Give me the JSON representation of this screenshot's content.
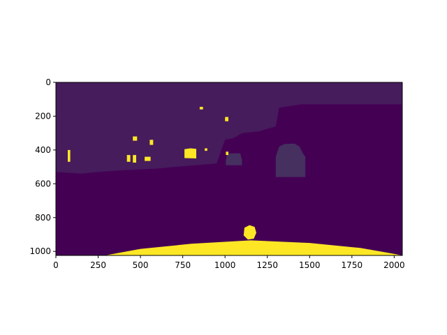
{
  "figure": {
    "background": "#ffffff"
  },
  "chart_data": {
    "type": "heatmap",
    "title": "",
    "xlabel": "",
    "ylabel": "",
    "image_width": 2048,
    "image_height": 1024,
    "xlim": [
      0,
      2048
    ],
    "ylim": [
      1024,
      0
    ],
    "y_inverted": true,
    "colormap": "viridis",
    "x_ticks": [
      0,
      250,
      500,
      750,
      1000,
      1250,
      1500,
      1750,
      2000
    ],
    "y_ticks": [
      0,
      200,
      400,
      600,
      800,
      1000
    ],
    "grid": false,
    "legend": "none",
    "colors": {
      "background_class": "#440154",
      "dark_region": "#461c5c",
      "vehicle": "#45305f",
      "highlight": "#fde725",
      "edge": "#21918c"
    },
    "regions": [
      {
        "label": "buildings",
        "color_key": "dark_region",
        "points": [
          [
            0,
            0
          ],
          [
            2048,
            0
          ],
          [
            2048,
            130
          ],
          [
            1450,
            130
          ],
          [
            1320,
            150
          ],
          [
            1300,
            260
          ],
          [
            1200,
            290
          ],
          [
            1100,
            300
          ],
          [
            1050,
            330
          ],
          [
            1000,
            340
          ],
          [
            950,
            480
          ],
          [
            700,
            500
          ],
          [
            600,
            510
          ],
          [
            400,
            520
          ],
          [
            250,
            530
          ],
          [
            150,
            540
          ],
          [
            0,
            530
          ]
        ]
      },
      {
        "label": "left-facade",
        "color_key": "dark_region",
        "points": [
          [
            0,
            120
          ],
          [
            70,
            160
          ],
          [
            110,
            230
          ],
          [
            220,
            250
          ],
          [
            290,
            300
          ],
          [
            330,
            350
          ],
          [
            380,
            300
          ],
          [
            460,
            290
          ],
          [
            560,
            280
          ],
          [
            630,
            230
          ],
          [
            700,
            240
          ],
          [
            700,
            470
          ],
          [
            600,
            490
          ],
          [
            450,
            510
          ],
          [
            300,
            520
          ],
          [
            150,
            520
          ],
          [
            0,
            520
          ]
        ]
      },
      {
        "label": "car",
        "color_key": "vehicle",
        "points": [
          [
            1300,
            440
          ],
          [
            1320,
            380
          ],
          [
            1350,
            365
          ],
          [
            1410,
            362
          ],
          [
            1440,
            380
          ],
          [
            1460,
            420
          ],
          [
            1475,
            440
          ],
          [
            1475,
            560
          ],
          [
            1300,
            560
          ]
        ]
      },
      {
        "label": "car-small",
        "color_key": "vehicle",
        "points": [
          [
            1005,
            460
          ],
          [
            1015,
            420
          ],
          [
            1090,
            420
          ],
          [
            1100,
            460
          ],
          [
            1100,
            490
          ],
          [
            1005,
            490
          ]
        ]
      },
      {
        "label": "sign-1",
        "color_key": "highlight",
        "points": [
          [
            760,
            395
          ],
          [
            795,
            390
          ],
          [
            830,
            393
          ],
          [
            830,
            450
          ],
          [
            760,
            448
          ]
        ]
      },
      {
        "label": "sign-2",
        "color_key": "highlight",
        "points": [
          [
            1115,
            860
          ],
          [
            1145,
            845
          ],
          [
            1175,
            855
          ],
          [
            1185,
            890
          ],
          [
            1170,
            925
          ],
          [
            1135,
            930
          ],
          [
            1110,
            905
          ]
        ]
      },
      {
        "label": "sign-3",
        "color_key": "highlight",
        "points": [
          [
            420,
            430
          ],
          [
            440,
            430
          ],
          [
            440,
            470
          ],
          [
            420,
            470
          ]
        ]
      },
      {
        "label": "sign-4",
        "color_key": "highlight",
        "points": [
          [
            455,
            430
          ],
          [
            475,
            430
          ],
          [
            475,
            475
          ],
          [
            455,
            475
          ]
        ]
      },
      {
        "label": "sign-5",
        "color_key": "highlight",
        "points": [
          [
            525,
            440
          ],
          [
            560,
            440
          ],
          [
            560,
            465
          ],
          [
            525,
            465
          ]
        ]
      },
      {
        "label": "sign-6",
        "color_key": "highlight",
        "points": [
          [
            555,
            340
          ],
          [
            575,
            340
          ],
          [
            575,
            370
          ],
          [
            555,
            370
          ]
        ]
      },
      {
        "label": "sign-7",
        "color_key": "highlight",
        "points": [
          [
            455,
            320
          ],
          [
            480,
            320
          ],
          [
            480,
            345
          ],
          [
            455,
            345
          ]
        ]
      },
      {
        "label": "sign-8",
        "color_key": "highlight",
        "points": [
          [
            70,
            400
          ],
          [
            85,
            400
          ],
          [
            85,
            470
          ],
          [
            70,
            470
          ]
        ]
      },
      {
        "label": "sign-9",
        "color_key": "highlight",
        "points": [
          [
            850,
            145
          ],
          [
            870,
            145
          ],
          [
            870,
            160
          ],
          [
            850,
            160
          ]
        ]
      },
      {
        "label": "sign-10",
        "color_key": "highlight",
        "points": [
          [
            1000,
            205
          ],
          [
            1020,
            205
          ],
          [
            1020,
            230
          ],
          [
            1000,
            230
          ]
        ]
      },
      {
        "label": "sign-11",
        "color_key": "highlight",
        "points": [
          [
            1005,
            410
          ],
          [
            1020,
            410
          ],
          [
            1020,
            430
          ],
          [
            1005,
            430
          ]
        ]
      },
      {
        "label": "sign-12",
        "color_key": "highlight",
        "points": [
          [
            880,
            390
          ],
          [
            895,
            390
          ],
          [
            895,
            405
          ],
          [
            880,
            405
          ]
        ]
      },
      {
        "label": "hood",
        "color_key": "highlight",
        "points": [
          [
            290,
            1024
          ],
          [
            500,
            985
          ],
          [
            800,
            955
          ],
          [
            1150,
            935
          ],
          [
            1500,
            950
          ],
          [
            1800,
            980
          ],
          [
            2000,
            1015
          ],
          [
            2048,
            1024
          ]
        ]
      }
    ]
  }
}
